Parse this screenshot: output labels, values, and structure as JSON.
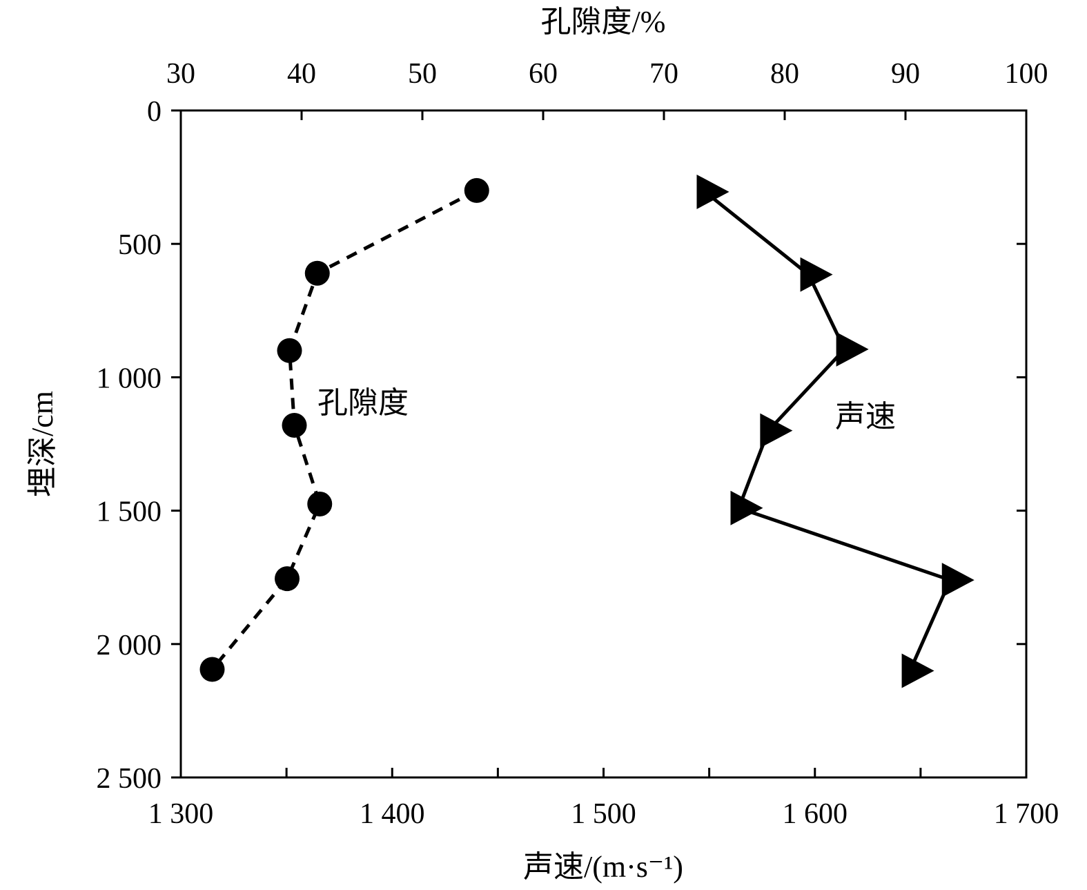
{
  "chart_data": {
    "type": "line",
    "top_axis": {
      "title": "孔隙度/%",
      "range": [
        30,
        100
      ],
      "ticks": [
        30,
        40,
        50,
        60,
        70,
        80,
        90,
        100
      ],
      "tick_labels": [
        "30",
        "40",
        "50",
        "60",
        "70",
        "80",
        "90",
        "100"
      ]
    },
    "bottom_axis": {
      "title": "声速/(m·s⁻¹)",
      "range": [
        1300,
        1700
      ],
      "ticks": [
        1300,
        1400,
        1500,
        1600,
        1700
      ],
      "tick_labels": [
        "1 300",
        "1 400",
        "1 500",
        "1 600",
        "1 700"
      ]
    },
    "y_axis": {
      "title": "埋深/cm",
      "range": [
        0,
        2500
      ],
      "inverted": true,
      "ticks": [
        0,
        500,
        1000,
        1500,
        2000,
        2500
      ],
      "tick_labels": [
        "0",
        "500",
        "1 000",
        "1 500",
        "2 000",
        "2 500"
      ]
    },
    "series": [
      {
        "name": "孔隙度",
        "axis": "top",
        "line_style": "dashed",
        "marker": "circle",
        "color": "#000000",
        "points": [
          {
            "x": 54.5,
            "depth": 300
          },
          {
            "x": 41.3,
            "depth": 610
          },
          {
            "x": 39.0,
            "depth": 900
          },
          {
            "x": 39.4,
            "depth": 1180
          },
          {
            "x": 41.5,
            "depth": 1475
          },
          {
            "x": 38.8,
            "depth": 1755
          },
          {
            "x": 32.6,
            "depth": 2095
          }
        ]
      },
      {
        "name": "声速",
        "axis": "bottom",
        "line_style": "solid",
        "marker": "triangle-right",
        "color": "#000000",
        "points": [
          {
            "x": 1548,
            "depth": 305
          },
          {
            "x": 1597,
            "depth": 615
          },
          {
            "x": 1614,
            "depth": 895
          },
          {
            "x": 1578,
            "depth": 1200
          },
          {
            "x": 1564,
            "depth": 1490
          },
          {
            "x": 1664,
            "depth": 1760
          },
          {
            "x": 1645,
            "depth": 2100
          }
        ]
      }
    ],
    "grid": false,
    "legend": "inline labels"
  }
}
